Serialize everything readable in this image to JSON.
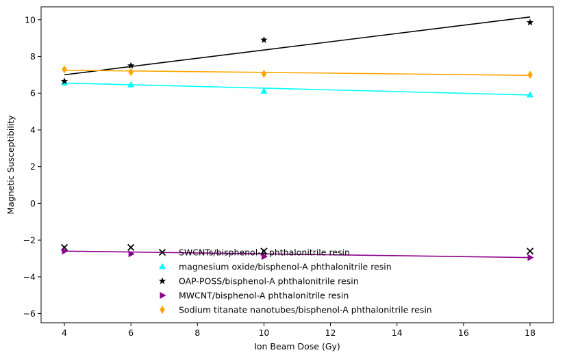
{
  "chart_data": {
    "type": "scatter",
    "title": "",
    "xlabel": "Ion Beam Dose (Gy)",
    "ylabel": "Magnetic Susceptibility",
    "xlim": [
      3.3,
      18.7
    ],
    "ylim": [
      -6.5,
      10.7
    ],
    "xticks": [
      4,
      6,
      8,
      10,
      12,
      14,
      16,
      18
    ],
    "yticks": [
      -6,
      -4,
      -2,
      0,
      2,
      4,
      6,
      8,
      10
    ],
    "grid": false,
    "legend_position": "bottom-center",
    "x": [
      4,
      6,
      10,
      18
    ],
    "series": [
      {
        "name": "SWCNTs/bisphenol-A phthalonitrile resin",
        "color": "#000000",
        "marker": "x",
        "values": [
          -2.4,
          -2.4,
          -2.6,
          -2.6
        ],
        "fit": null
      },
      {
        "name": "magnesium oxide/bisphenol-A phthalonitrile resin",
        "color": "#00ffff",
        "marker": "triangle-up",
        "values": [
          6.55,
          6.45,
          6.1,
          5.9
        ],
        "fit": [
          6.55,
          5.9
        ]
      },
      {
        "name": "OAP-POSS/bisphenol-A phthalonitrile resin",
        "color": "#000000",
        "marker": "star",
        "values": [
          6.65,
          7.5,
          8.9,
          9.85
        ],
        "fit": [
          7.0,
          10.15
        ]
      },
      {
        "name": "MWCNT/bisphenol-A phthalonitrile resin",
        "color": "#8b008b",
        "marker": "triangle-right",
        "values": [
          -2.6,
          -2.75,
          -2.9,
          -2.95
        ],
        "fit": [
          -2.6,
          -2.95
        ]
      },
      {
        "name": "Sodium titanate nanotubes/bisphenol-A phthalonitrile resin",
        "color": "#ffa500",
        "marker": "thin-diamond",
        "values": [
          7.3,
          7.15,
          7.05,
          7.0
        ],
        "fit": [
          7.25,
          6.97
        ]
      }
    ]
  }
}
